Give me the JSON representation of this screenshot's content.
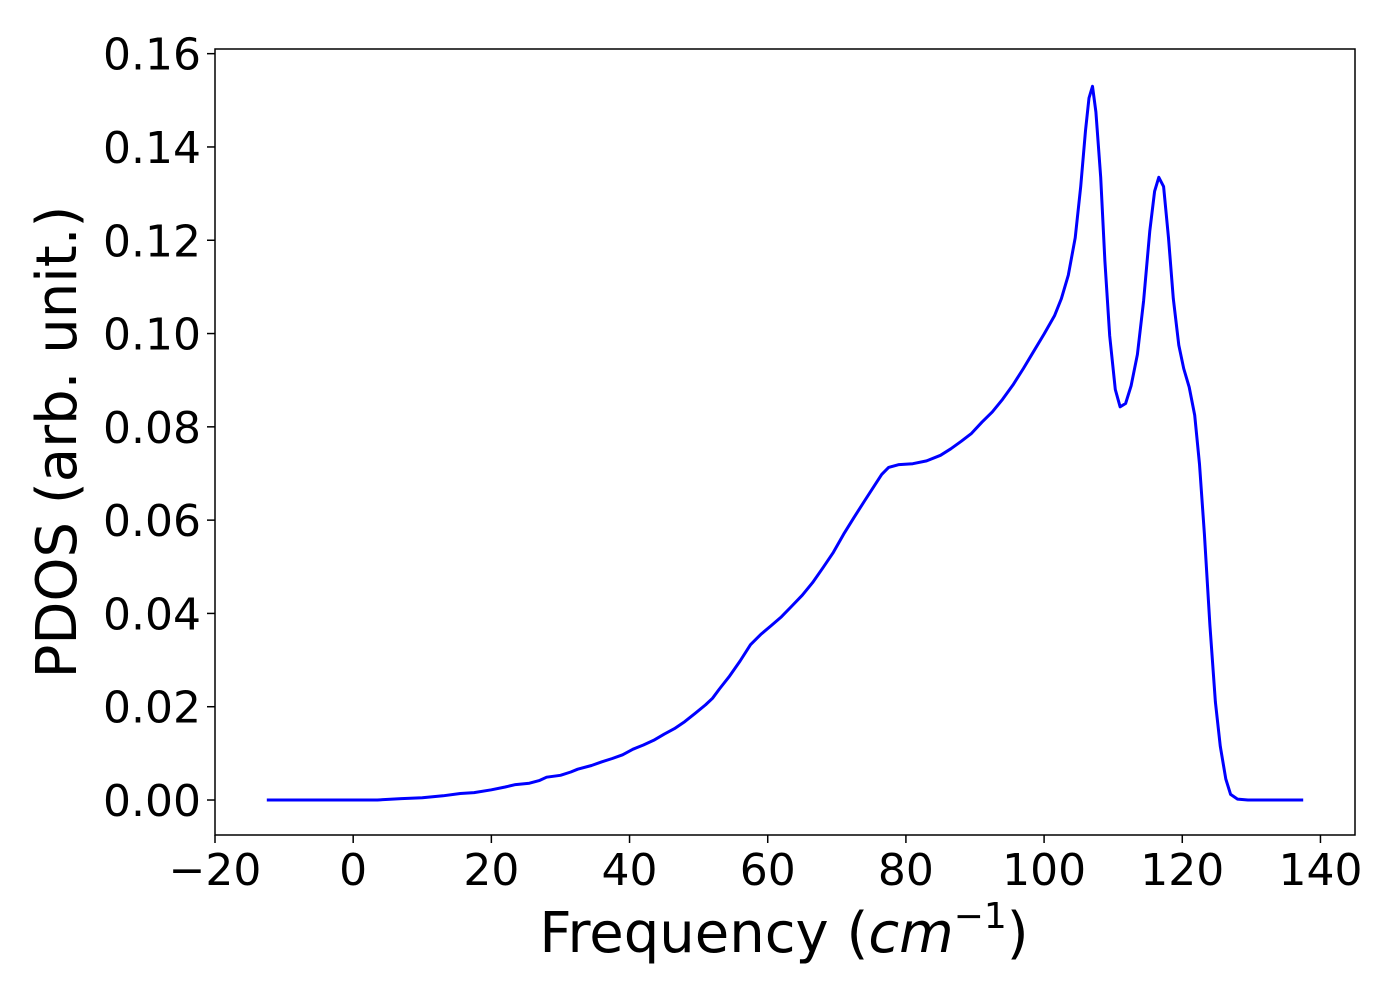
{
  "chart_data": {
    "type": "line",
    "title": "",
    "xlabel_text": "Frequency (",
    "xlabel_unit": "cm",
    "xlabel_exp": "−1",
    "xlabel_close": ")",
    "ylabel": "PDOS (arb. unit.)",
    "xlim": [
      -20,
      145
    ],
    "ylim": [
      -0.0075,
      0.161
    ],
    "xticks": [
      -20,
      0,
      20,
      40,
      60,
      80,
      100,
      120,
      140
    ],
    "xtick_labels": [
      "−20",
      "0",
      "20",
      "40",
      "60",
      "80",
      "100",
      "120",
      "140"
    ],
    "yticks": [
      0.0,
      0.02,
      0.04,
      0.06,
      0.08,
      0.1,
      0.12,
      0.14,
      0.16
    ],
    "ytick_labels": [
      "0.00",
      "0.02",
      "0.04",
      "0.06",
      "0.08",
      "0.10",
      "0.12",
      "0.14",
      "0.16"
    ],
    "grid": false,
    "series": [
      {
        "color": "#0000ff",
        "points": [
          [
            -12.5,
            0.0
          ],
          [
            -5,
            0.0
          ],
          [
            0,
            0.0
          ],
          [
            3.5,
            0.0
          ],
          [
            7,
            0.0003
          ],
          [
            10,
            0.0005
          ],
          [
            13,
            0.0009
          ],
          [
            15.5,
            0.0014
          ],
          [
            17.5,
            0.0016
          ],
          [
            20,
            0.0022
          ],
          [
            22,
            0.0028
          ],
          [
            23.5,
            0.0033
          ],
          [
            25.5,
            0.0036
          ],
          [
            27,
            0.0042
          ],
          [
            28,
            0.0049
          ],
          [
            30,
            0.0053
          ],
          [
            31.5,
            0.006
          ],
          [
            32.5,
            0.0066
          ],
          [
            34.5,
            0.0074
          ],
          [
            36,
            0.0082
          ],
          [
            37.5,
            0.0089
          ],
          [
            39,
            0.0097
          ],
          [
            40.5,
            0.0109
          ],
          [
            42,
            0.0118
          ],
          [
            43.5,
            0.0128
          ],
          [
            45,
            0.0141
          ],
          [
            46.5,
            0.0153
          ],
          [
            48,
            0.0168
          ],
          [
            49.5,
            0.0186
          ],
          [
            51,
            0.0204
          ],
          [
            52,
            0.0218
          ],
          [
            53,
            0.0238
          ],
          [
            54.5,
            0.0266
          ],
          [
            56,
            0.0298
          ],
          [
            57.5,
            0.0333
          ],
          [
            59,
            0.0355
          ],
          [
            60.5,
            0.0374
          ],
          [
            62,
            0.0393
          ],
          [
            63.5,
            0.0416
          ],
          [
            65,
            0.0439
          ],
          [
            66.5,
            0.0466
          ],
          [
            68,
            0.0498
          ],
          [
            69.5,
            0.0531
          ],
          [
            71,
            0.057
          ],
          [
            72.5,
            0.0606
          ],
          [
            74,
            0.0641
          ],
          [
            75.5,
            0.0675
          ],
          [
            76.5,
            0.0698
          ],
          [
            77.5,
            0.0713
          ],
          [
            79,
            0.0719
          ],
          [
            81,
            0.0721
          ],
          [
            83,
            0.0727
          ],
          [
            85,
            0.0739
          ],
          [
            86.5,
            0.0753
          ],
          [
            88,
            0.0769
          ],
          [
            89.5,
            0.0786
          ],
          [
            91,
            0.081
          ],
          [
            92.5,
            0.0832
          ],
          [
            94,
            0.0859
          ],
          [
            95.5,
            0.089
          ],
          [
            97,
            0.0925
          ],
          [
            98.5,
            0.0962
          ],
          [
            100,
            0.0999
          ],
          [
            101.5,
            0.1038
          ],
          [
            102.5,
            0.1075
          ],
          [
            103.5,
            0.1125
          ],
          [
            104.5,
            0.1205
          ],
          [
            105.3,
            0.1315
          ],
          [
            106,
            0.1435
          ],
          [
            106.5,
            0.1505
          ],
          [
            107,
            0.153
          ],
          [
            107.5,
            0.1475
          ],
          [
            108.2,
            0.1335
          ],
          [
            108.8,
            0.1155
          ],
          [
            109.5,
            0.0995
          ],
          [
            110.3,
            0.088
          ],
          [
            111,
            0.0843
          ],
          [
            111.8,
            0.085
          ],
          [
            112.6,
            0.0888
          ],
          [
            113.5,
            0.0955
          ],
          [
            114.4,
            0.107
          ],
          [
            115.3,
            0.122
          ],
          [
            116,
            0.1305
          ],
          [
            116.6,
            0.1335
          ],
          [
            117.3,
            0.1315
          ],
          [
            118,
            0.1205
          ],
          [
            118.7,
            0.1075
          ],
          [
            119.5,
            0.0975
          ],
          [
            120.2,
            0.0925
          ],
          [
            121,
            0.0885
          ],
          [
            121.8,
            0.0825
          ],
          [
            122.5,
            0.072
          ],
          [
            123.2,
            0.057
          ],
          [
            124,
            0.0375
          ],
          [
            124.8,
            0.021
          ],
          [
            125.5,
            0.0115
          ],
          [
            126.3,
            0.0045
          ],
          [
            127,
            0.0012
          ],
          [
            128,
            0.0002
          ],
          [
            129.5,
            0.0
          ],
          [
            133,
            0.0
          ],
          [
            137.5,
            0.0
          ]
        ]
      }
    ]
  }
}
